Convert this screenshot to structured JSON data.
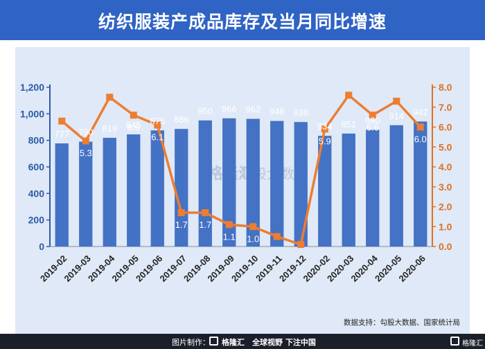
{
  "header": {
    "title": "纺织服装产成品库存及当月同比增速"
  },
  "watermark": {
    "text": "格隆汇",
    "sub": "勾股大数据"
  },
  "source": {
    "text": "数据支持：勾股大数据、国家统计局"
  },
  "footer": {
    "made_by": "图片制作：",
    "brand": "格隆汇",
    "slogan": "全球视野 下注中国",
    "brand_right": "格隆汇"
  },
  "colors": {
    "bar": "#4472c4",
    "line": "#ed7d31",
    "axis_left": "#2e5aa8",
    "axis_right": "#e07020"
  },
  "chart_data": {
    "type": "bar",
    "title": "纺织服装产成品库存及当月同比增速",
    "categories": [
      "2019-02",
      "2019-03",
      "2019-04",
      "2019-05",
      "2019-06",
      "2019-07",
      "2019-08",
      "2019-09",
      "2019-10",
      "2019-11",
      "2019-12",
      "2020-02",
      "2020-03",
      "2020-04",
      "2020-05",
      "2020-06"
    ],
    "series": [
      {
        "name": "产成品库存",
        "type": "bar",
        "axis": "left",
        "values": [
          777,
          790,
          819,
          845,
          875,
          886,
          950,
          966,
          962,
          946,
          938,
          834,
          851,
          880,
          914,
          942
        ]
      },
      {
        "name": "当月同比增速",
        "type": "line",
        "axis": "right",
        "values": [
          6.3,
          5.3,
          7.5,
          6.6,
          6.1,
          1.7,
          1.7,
          1.1,
          1.0,
          0.5,
          0.1,
          5.9,
          7.6,
          6.6,
          7.3,
          6.0
        ]
      }
    ],
    "y_left": {
      "min": 0,
      "max": 1200,
      "ticks": [
        "0",
        "200",
        "400",
        "600",
        "800",
        "1,000",
        "1,200"
      ]
    },
    "y_right": {
      "min": 0,
      "max": 8,
      "ticks": [
        "0.0",
        "1.0",
        "2.0",
        "3.0",
        "4.0",
        "5.0",
        "6.0",
        "7.0",
        "8.0"
      ]
    },
    "bar_labels": [
      "777",
      "790",
      "819",
      "845",
      "875",
      "886",
      "950",
      "966",
      "962",
      "946",
      "938",
      "834",
      "851",
      "880",
      "914",
      "942"
    ],
    "line_labels": [
      "",
      "5.3",
      "",
      "6.6",
      "6.1",
      "1.7",
      "1.7",
      "1.1",
      "1.0",
      "",
      "",
      "5.9",
      "",
      "6.6",
      "",
      "6.0"
    ]
  }
}
